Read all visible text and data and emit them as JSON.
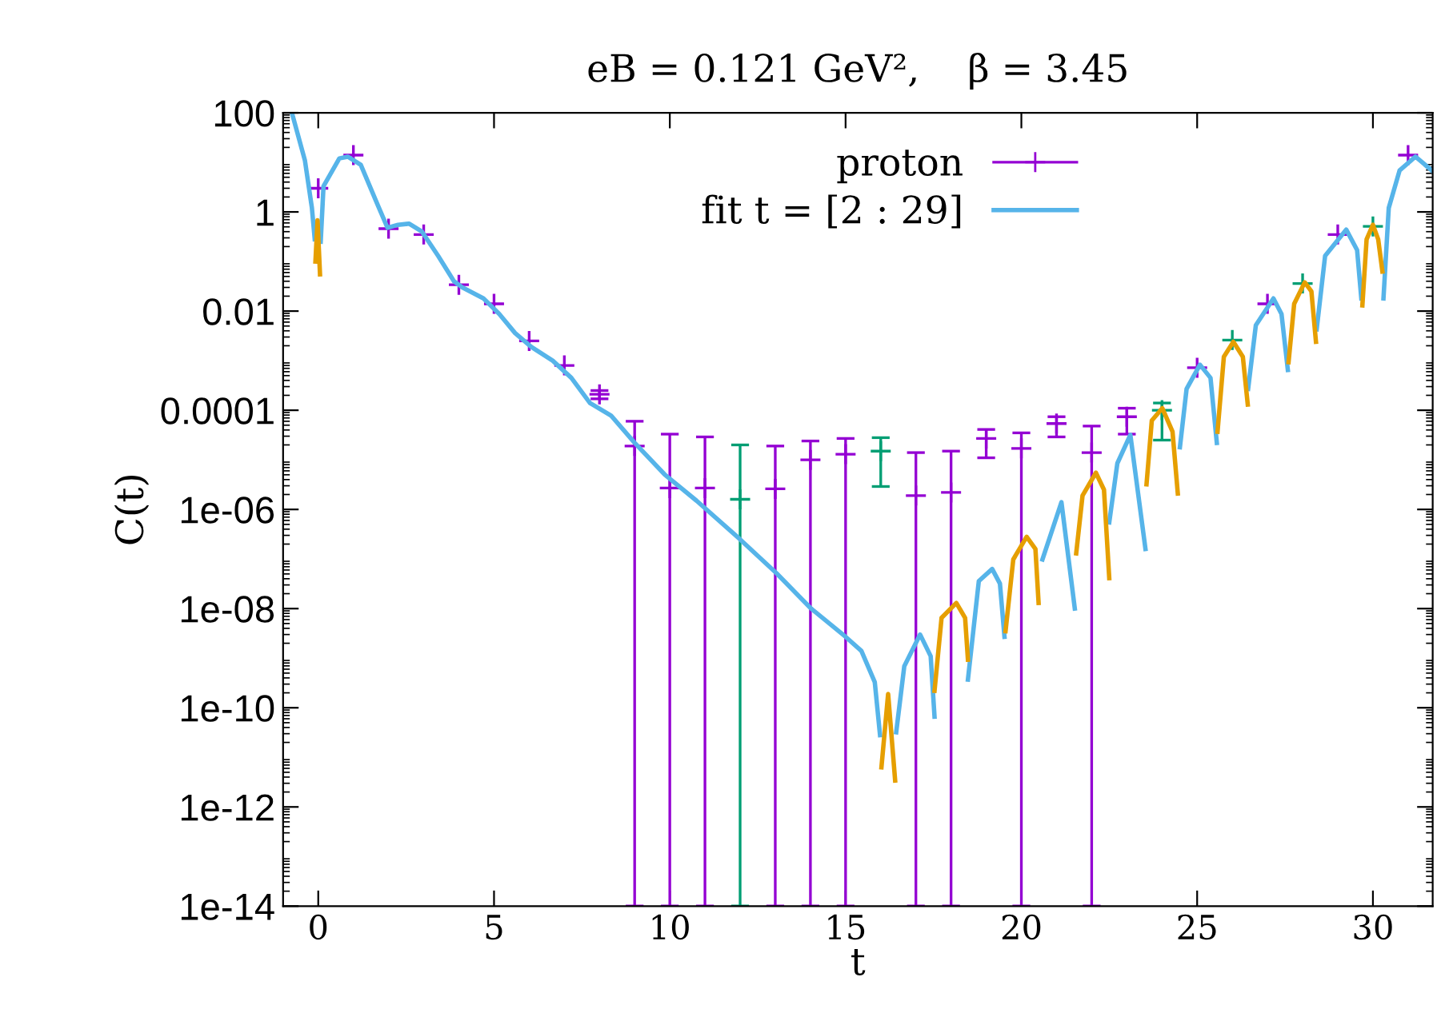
{
  "chart_data": {
    "type": "scatter",
    "title": "eB = 0.121 GeV²,    β = 3.45",
    "xlabel": "t",
    "ylabel": "C(t)",
    "log": "y",
    "xlim": [
      -1,
      31.7
    ],
    "xticks": [
      0,
      5,
      10,
      15,
      20,
      25,
      30
    ],
    "ylim": [
      1e-14,
      100
    ],
    "yticks": [
      100,
      1,
      0.01,
      0.0001,
      {
        "value": 1e-06,
        "label": "1e-06"
      },
      {
        "value": 1e-08,
        "label": "1e-08"
      },
      {
        "value": 1e-10,
        "label": "1e-10"
      },
      {
        "value": 1e-12,
        "label": "1e-12"
      },
      {
        "value": 1e-14,
        "label": "1e-14"
      }
    ],
    "grid": false,
    "legend": "top right",
    "series": [
      {
        "name": "proton",
        "marker": "cross",
        "color": "#9400d3",
        "x": [
          0,
          1,
          2,
          3,
          4,
          5,
          6,
          7,
          8,
          9,
          10,
          11,
          13,
          14,
          15,
          17,
          18,
          19,
          20,
          21,
          22,
          23,
          25,
          27,
          29,
          31
        ],
        "values": [
          3,
          14,
          0.46,
          0.35,
          0.034,
          0.014,
          0.0025,
          0.0008,
          0.00021,
          1.9e-05,
          2.7e-06,
          2.7e-06,
          2.6e-06,
          1e-05,
          1.3e-05,
          1.9e-06,
          2.2e-06,
          2.7e-05,
          1.7e-05,
          5.4e-05,
          1.4e-05,
          7.4e-05,
          0.00072,
          0.014,
          0.35,
          14
        ],
        "errors": [
          null,
          null,
          null,
          null,
          null,
          null,
          null,
          null,
          [
            0.00017,
            0.00025
          ],
          [
            1e-14,
            6e-05
          ],
          [
            1e-14,
            3.3e-05
          ],
          [
            1e-14,
            2.9e-05
          ],
          [
            1e-14,
            1.9e-05
          ],
          [
            1e-14,
            2.4e-05
          ],
          [
            1e-14,
            2.7e-05
          ],
          [
            1e-14,
            1.4e-05
          ],
          [
            1e-14,
            1.5e-05
          ],
          [
            1.1e-05,
            4.1e-05
          ],
          [
            1e-14,
            3.5e-05
          ],
          [
            2.9e-05,
            7.4e-05
          ],
          [
            1e-14,
            4.8e-05
          ],
          [
            3.3e-05,
            0.00011
          ],
          null,
          null,
          null,
          null
        ]
      },
      {
        "marker": "cross",
        "color": "#009e73",
        "x": [
          12,
          16,
          24,
          26,
          28,
          30
        ],
        "values": [
          1.6e-06,
          1.5e-05,
          0.0001,
          0.0026,
          0.036,
          0.51
        ],
        "errors": [
          [
            1e-14,
            2e-05
          ],
          [
            2.9e-06,
            2.8e-05
          ],
          [
            2.5e-05,
            0.00014
          ],
          null,
          null,
          null
        ]
      },
      {
        "name": "fit t = [2 : 29]",
        "type": "line",
        "marker": "none",
        "line_style": "solid",
        "color": "#56b4e9",
        "x": [
          -0.75,
          -0.38,
          -0.18,
          -0.1,
          -0.05,
          0.07,
          0.15,
          0.6,
          0.84,
          1.21,
          1.67,
          1.97,
          2.27,
          2.58,
          2.95,
          3.41,
          3.86,
          4.1,
          4.7,
          5.15,
          5.6,
          6.06,
          6.67,
          7.2,
          7.73,
          8.33,
          9.0,
          9.85,
          10.76,
          11.97,
          13.03,
          14.02,
          15.0,
          15.45,
          15.83,
          15.98,
          16.2,
          16.44,
          16.67,
          17.12,
          17.42,
          17.53,
          18.0,
          18.48,
          18.79,
          19.17,
          19.39,
          19.52,
          20.0,
          20.6,
          21.14,
          21.52,
          22.0,
          22.5,
          22.73,
          23.1,
          23.53,
          24.0,
          24.51,
          24.7,
          25.08,
          25.38,
          25.56,
          26.0,
          26.45,
          26.67,
          27.17,
          27.4,
          27.58,
          28.0,
          28.4,
          28.64,
          29.24,
          29.55,
          29.67,
          30.0,
          30.3,
          30.45,
          30.76,
          31.21,
          31.67
        ],
        "values": [
          100,
          11,
          1.2,
          0.28,
          null,
          0.25,
          3.3,
          12,
          13,
          8.9,
          1.5,
          0.48,
          0.55,
          0.58,
          0.4,
          0.13,
          0.04,
          0.03,
          0.018,
          0.0087,
          0.0036,
          0.0019,
          0.001,
          0.00045,
          0.00014,
          7.8e-05,
          2.2e-05,
          5.1e-06,
          1.5e-06,
          2.6e-07,
          5.2e-08,
          1e-08,
          2.7e-09,
          1.4e-09,
          3.3e-10,
          2.8e-11,
          null,
          3.2e-11,
          6.9e-10,
          3e-09,
          1.1e-09,
          6.6e-11,
          null,
          3.7e-10,
          3.6e-08,
          6.3e-08,
          3.2e-08,
          2.7e-09,
          null,
          9.8e-08,
          1.4e-06,
          1e-08,
          null,
          5.5e-07,
          8.5e-06,
          3.2e-05,
          1.6e-07,
          null,
          1.8e-05,
          0.00027,
          0.00083,
          0.00045,
          2.2e-05,
          null,
          0.00027,
          0.0052,
          0.018,
          0.0087,
          0.00065,
          null,
          0.0043,
          0.13,
          0.44,
          0.17,
          0.018,
          null,
          0.018,
          1.2,
          6.9,
          13,
          6.9
        ]
      },
      {
        "type": "line",
        "marker": "none",
        "line_style": "solid",
        "color": "#e69f00",
        "x": [
          -0.08,
          -0.02,
          0.05,
          8.0,
          16.02,
          16.21,
          16.41,
          17.0,
          17.53,
          17.73,
          18.15,
          18.4,
          18.48,
          19.0,
          19.55,
          19.77,
          20.15,
          20.4,
          20.49,
          21.0,
          21.56,
          21.74,
          22.12,
          22.35,
          22.5,
          23.0,
          23.56,
          23.71,
          24.01,
          24.3,
          24.45,
          25.0,
          25.58,
          25.76,
          26.03,
          26.3,
          26.44,
          27.0,
          27.6,
          27.76,
          28.06,
          28.25,
          28.38,
          29.0,
          29.7,
          29.82,
          30.0,
          30.15,
          30.27
        ],
        "values": [
          0.1,
          0.68,
          0.055,
          null,
          6.3e-12,
          1.9e-10,
          3.4e-12,
          null,
          2.2e-10,
          6.5e-09,
          1.3e-08,
          6.5e-09,
          9.3e-10,
          null,
          3.5e-09,
          9.8e-08,
          2.8e-07,
          1.6e-07,
          1.3e-08,
          null,
          1.3e-07,
          1.9e-06,
          5.5e-06,
          2.5e-06,
          4.1e-08,
          null,
          3.2e-06,
          6.2e-05,
          0.00011,
          3.7e-05,
          2.1e-06,
          null,
          3.7e-05,
          0.0012,
          0.0024,
          0.0012,
          0.00013,
          null,
          0.00093,
          0.014,
          0.038,
          0.025,
          0.0024,
          null,
          0.013,
          0.28,
          0.55,
          0.28,
          0.063
        ]
      }
    ]
  }
}
